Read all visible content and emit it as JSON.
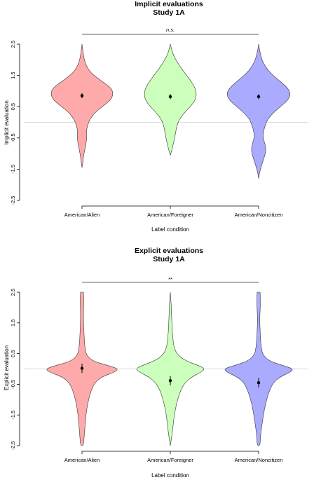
{
  "chart_data": [
    {
      "type": "violin",
      "title": "Implicit evaluations",
      "subtitle": "Study 1A",
      "xlabel": "Label condition",
      "ylabel": "Implicit evaluation",
      "ylim": [
        -2.5,
        2.5
      ],
      "yticks": [
        "2.5",
        "1.5",
        "0.5",
        "-0.5",
        "-1.5",
        "-2.5"
      ],
      "reference_line_y": 0,
      "significance_label": "n.s.",
      "categories": [
        "American/Alien",
        "American/Foreigner",
        "American/Noncitizen"
      ],
      "fill_colors": [
        "#ffaaaa",
        "#ccffbb",
        "#aaaaff"
      ],
      "violins": [
        {
          "category": "American/Alien",
          "y": [
            2.5,
            2.2,
            1.9,
            1.6,
            1.35,
            1.1,
            0.9,
            0.7,
            0.5,
            0.3,
            0.1,
            -0.1,
            -0.3,
            -0.5,
            -0.7,
            -0.9,
            -1.1,
            -1.3,
            -1.45
          ],
          "halfwidth": [
            0.0,
            0.03,
            0.08,
            0.22,
            0.5,
            0.8,
            0.86,
            0.78,
            0.55,
            0.35,
            0.22,
            0.15,
            0.12,
            0.13,
            0.11,
            0.07,
            0.04,
            0.02,
            0.0
          ]
        },
        {
          "category": "American/Foreigner",
          "y": [
            2.5,
            2.2,
            1.9,
            1.6,
            1.35,
            1.1,
            0.9,
            0.7,
            0.5,
            0.3,
            0.1,
            -0.1,
            -0.3,
            -0.5,
            -0.7,
            -0.9,
            -1.05
          ],
          "halfwidth": [
            0.0,
            0.06,
            0.2,
            0.38,
            0.55,
            0.68,
            0.72,
            0.68,
            0.55,
            0.38,
            0.25,
            0.18,
            0.15,
            0.12,
            0.08,
            0.04,
            0.0
          ]
        },
        {
          "category": "American/Noncitizen",
          "y": [
            2.5,
            2.2,
            1.9,
            1.6,
            1.35,
            1.1,
            0.9,
            0.7,
            0.5,
            0.3,
            0.1,
            -0.1,
            -0.3,
            -0.5,
            -0.7,
            -0.9,
            -1.1,
            -1.3,
            -1.5,
            -1.65,
            -1.8
          ],
          "halfwidth": [
            0.0,
            0.04,
            0.12,
            0.3,
            0.55,
            0.8,
            0.88,
            0.8,
            0.6,
            0.4,
            0.25,
            0.18,
            0.13,
            0.12,
            0.18,
            0.2,
            0.16,
            0.1,
            0.05,
            0.02,
            0.0
          ]
        }
      ],
      "means": [
        0.85,
        0.82,
        0.82
      ],
      "error": [
        0.08,
        0.08,
        0.08
      ]
    },
    {
      "type": "violin",
      "title": "Explicit evaluations",
      "subtitle": "Study 1A",
      "xlabel": "Label condition",
      "ylabel": "Explicit evaluation",
      "ylim": [
        -2.5,
        2.5
      ],
      "yticks": [
        "2.5",
        "1.5",
        "0.5",
        "-0.5",
        "-1.5",
        "-2.5"
      ],
      "reference_line_y": 0,
      "significance_label": "**",
      "categories": [
        "American/Alien",
        "American/Foreigner",
        "American/Noncitizen"
      ],
      "fill_colors": [
        "#ffaaaa",
        "#ccffbb",
        "#aaaaff"
      ],
      "violins": [
        {
          "category": "American/Alien",
          "y": [
            2.5,
            2.2,
            1.9,
            1.6,
            1.3,
            1.0,
            0.7,
            0.45,
            0.25,
            0.1,
            0.0,
            -0.1,
            -0.25,
            -0.45,
            -0.7,
            -1.0,
            -1.3,
            -1.6,
            -1.9,
            -2.2,
            -2.5
          ],
          "halfwidth": [
            0.04,
            0.05,
            0.04,
            0.04,
            0.05,
            0.06,
            0.08,
            0.12,
            0.3,
            0.75,
            1.0,
            0.9,
            0.55,
            0.35,
            0.25,
            0.18,
            0.13,
            0.1,
            0.08,
            0.06,
            0.04
          ]
        },
        {
          "category": "American/Foreigner",
          "y": [
            2.5,
            2.2,
            1.9,
            1.6,
            1.3,
            1.0,
            0.7,
            0.45,
            0.25,
            0.1,
            0.0,
            -0.1,
            -0.25,
            -0.45,
            -0.7,
            -1.0,
            -1.3,
            -1.6,
            -1.9,
            -2.2,
            -2.5
          ],
          "halfwidth": [
            0.0,
            0.02,
            0.03,
            0.04,
            0.05,
            0.07,
            0.1,
            0.2,
            0.45,
            0.8,
            0.95,
            0.85,
            0.6,
            0.4,
            0.28,
            0.2,
            0.14,
            0.1,
            0.07,
            0.04,
            0.0
          ]
        },
        {
          "category": "American/Noncitizen",
          "y": [
            2.5,
            2.2,
            1.9,
            1.6,
            1.3,
            1.0,
            0.7,
            0.45,
            0.25,
            0.1,
            0.0,
            -0.1,
            -0.25,
            -0.45,
            -0.7,
            -1.0,
            -1.3,
            -1.6,
            -1.9,
            -2.2,
            -2.5
          ],
          "halfwidth": [
            0.04,
            0.05,
            0.04,
            0.03,
            0.04,
            0.05,
            0.07,
            0.12,
            0.3,
            0.7,
            0.95,
            0.88,
            0.6,
            0.4,
            0.3,
            0.22,
            0.16,
            0.12,
            0.08,
            0.05,
            0.04
          ]
        }
      ],
      "means": [
        0.02,
        -0.38,
        -0.45
      ],
      "error": [
        0.15,
        0.15,
        0.15
      ]
    }
  ]
}
